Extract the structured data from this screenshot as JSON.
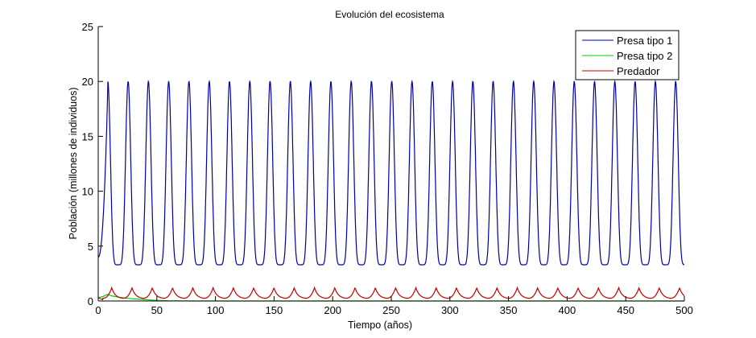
{
  "chart_data": {
    "type": "line",
    "title": "Evolución del ecosistema",
    "xlabel": "Tiempo (años)",
    "ylabel": "Población (millones de individuos)",
    "xlim": [
      0,
      500
    ],
    "ylim": [
      0,
      25
    ],
    "xticks": [
      0,
      50,
      100,
      150,
      200,
      250,
      300,
      350,
      400,
      450,
      500
    ],
    "yticks": [
      0,
      5,
      10,
      15,
      20,
      25
    ],
    "grid": false,
    "box": false,
    "legend_position": "upper right",
    "series": [
      {
        "name": "Presa tipo 1",
        "color": "#0000a0",
        "description": "Periodic oscillation, ~29 cycles, peaks ~19.6-20.0, troughs ~3.3",
        "start_value": 4.0,
        "period": 17.3,
        "first_peak_t": 8.2,
        "peak": 20.0,
        "trough": 3.3,
        "end_value": 4.8
      },
      {
        "name": "Presa tipo 2",
        "color": "#00d000",
        "description": "Small initial bump then decays to ~0",
        "x": [
          0,
          4,
          8,
          12,
          20,
          30,
          40,
          50,
          60,
          80,
          500
        ],
        "values": [
          0.3,
          0.4,
          0.6,
          0.45,
          0.3,
          0.2,
          0.12,
          0.06,
          0.02,
          0.0,
          0.0
        ]
      },
      {
        "name": "Predador",
        "color": "#c00000",
        "description": "Periodic oscillation lagging prey, peaks ~1.2, troughs ~0.2",
        "start_value": 0.3,
        "period": 17.3,
        "first_peak_t": 11.5,
        "peak": 1.2,
        "trough": 0.2
      }
    ]
  }
}
